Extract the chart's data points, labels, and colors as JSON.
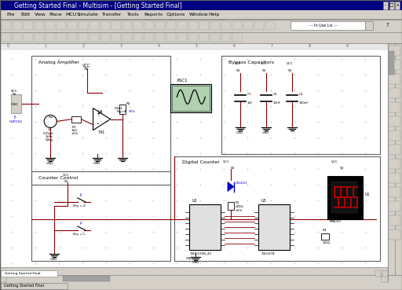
{
  "title_bar": "Getting Started Final - Multisim - [Getting Started Final]",
  "status_bar": "Getting Started Final",
  "bg_color": "#d4d0c8",
  "title_bar_color": "#000080",
  "title_bar_text_color": "#ffffff",
  "menu_items": [
    "File",
    "Edit",
    "View",
    "Place",
    "MCU",
    "Simulate",
    "Transfer",
    "Tools",
    "Reports",
    "Options",
    "Window",
    "Help"
  ],
  "wire_color": "#8b0000",
  "blue_color": "#0000cd",
  "green_bg": "#90ee90"
}
